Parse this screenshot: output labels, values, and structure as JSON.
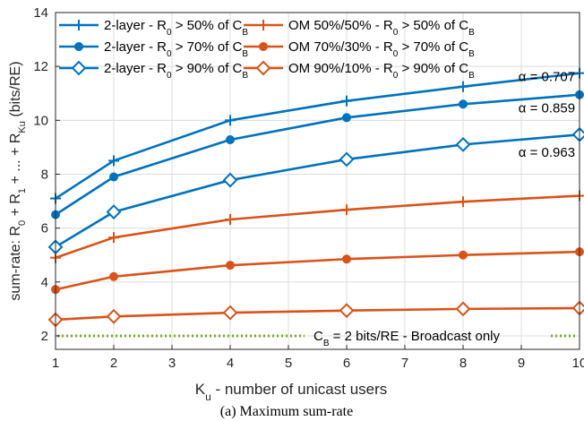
{
  "caption": "(a) Maximum sum-rate",
  "chart_data": {
    "type": "line",
    "xlabel": {
      "main": "K",
      "sub": "u",
      "rest": " - number of unicast users"
    },
    "ylabel": "sum-rate: R₀ + R₁ + ... + R_Ku (bits/RE)",
    "xlim": [
      1,
      10
    ],
    "ylim": [
      1.5,
      14
    ],
    "xticks": [
      "1",
      "2",
      "3",
      "4",
      "5",
      "6",
      "7",
      "8",
      "9",
      "10"
    ],
    "yticks": [
      "2",
      "4",
      "6",
      "8",
      "10",
      "12",
      "14"
    ],
    "grid": true,
    "legend_placement": "top-left",
    "x": [
      1,
      2,
      4,
      6,
      8,
      10
    ],
    "series": [
      {
        "name": "2-layer - R₀ > 50% of C_B",
        "legend": [
          "2-layer - R",
          "0",
          " > 50% of C",
          "B"
        ],
        "color": "#0072BD",
        "marker": "plus",
        "values": [
          7.1,
          8.5,
          10.0,
          10.72,
          11.25,
          11.75
        ]
      },
      {
        "name": "2-layer - R₀ > 70% of C_B",
        "legend": [
          "2-layer - R",
          "0",
          " > 70% of C",
          "B"
        ],
        "color": "#0072BD",
        "marker": "circle",
        "values": [
          6.5,
          7.9,
          9.28,
          10.1,
          10.6,
          10.95
        ]
      },
      {
        "name": "2-layer - R₀ > 90% of C_B",
        "legend": [
          "2-layer - R",
          "0",
          " > 90% of C",
          "B"
        ],
        "color": "#0072BD",
        "marker": "diamond",
        "values": [
          5.3,
          6.6,
          7.78,
          8.55,
          9.1,
          9.47
        ]
      },
      {
        "name": "OM 50%/50% - R₀ > 50% of C_B",
        "legend": [
          "OM 50%/50% - R",
          "0",
          " > 50% of C",
          "B"
        ],
        "color": "#D95319",
        "marker": "plus",
        "values": [
          4.9,
          5.65,
          6.32,
          6.68,
          6.98,
          7.2
        ]
      },
      {
        "name": "OM 70%/30% - R₀ > 70% of C_B",
        "legend": [
          "OM 70%/30% - R",
          "0",
          " > 70% of C",
          "B"
        ],
        "color": "#D95319",
        "marker": "circle",
        "values": [
          3.72,
          4.2,
          4.62,
          4.85,
          5.0,
          5.12
        ]
      },
      {
        "name": "OM 90%/10% - R₀ > 90% of C_B",
        "legend": [
          "OM 90%/10% - R",
          "0",
          " > 90% of C",
          "B"
        ],
        "color": "#D95319",
        "marker": "diamond",
        "values": [
          2.6,
          2.72,
          2.86,
          2.94,
          3.0,
          3.03
        ]
      }
    ],
    "reference": {
      "name": "C_B = 2 bits/RE - Broadcast only",
      "value": 2,
      "color": "#77AC30",
      "label_parts": [
        "C",
        "B",
        " = 2 bits/RE - Broadcast only"
      ]
    },
    "annotations": [
      {
        "text": "α = 0.707",
        "x": 8.95,
        "y": 11.45
      },
      {
        "text": "α = 0.859",
        "x": 8.95,
        "y": 10.3
      },
      {
        "text": "α = 0.963",
        "x": 8.95,
        "y": 8.65
      }
    ]
  }
}
